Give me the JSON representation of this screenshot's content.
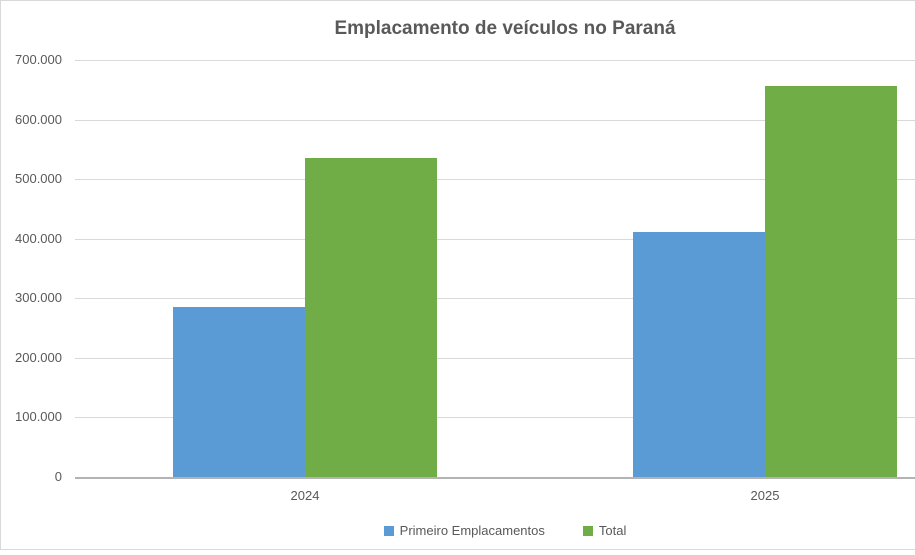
{
  "chart_data": {
    "type": "bar",
    "title": "Emplacamento de veículos no Paraná",
    "categories": [
      "2024",
      "2025"
    ],
    "series": [
      {
        "name": "Primeiro Emplacamentos",
        "color": "#5b9bd5",
        "values": [
          286000,
          412000
        ]
      },
      {
        "name": "Total",
        "color": "#70ad47",
        "values": [
          535000,
          657000
        ]
      }
    ],
    "xlabel": "",
    "ylabel": "",
    "ylim": [
      0,
      700000
    ],
    "ytick_interval": 100000,
    "ytick_labels": [
      "0",
      "100.000",
      "200.000",
      "300.000",
      "400.000",
      "500.000",
      "600.000",
      "700.000"
    ],
    "grid": "horizontal",
    "legend_position": "bottom",
    "colors": {
      "text": "#595959",
      "gridline": "#d9d9d9",
      "axis_line": "#b3b3b3",
      "background": "#ffffff",
      "border": "#d9d9d9"
    }
  }
}
